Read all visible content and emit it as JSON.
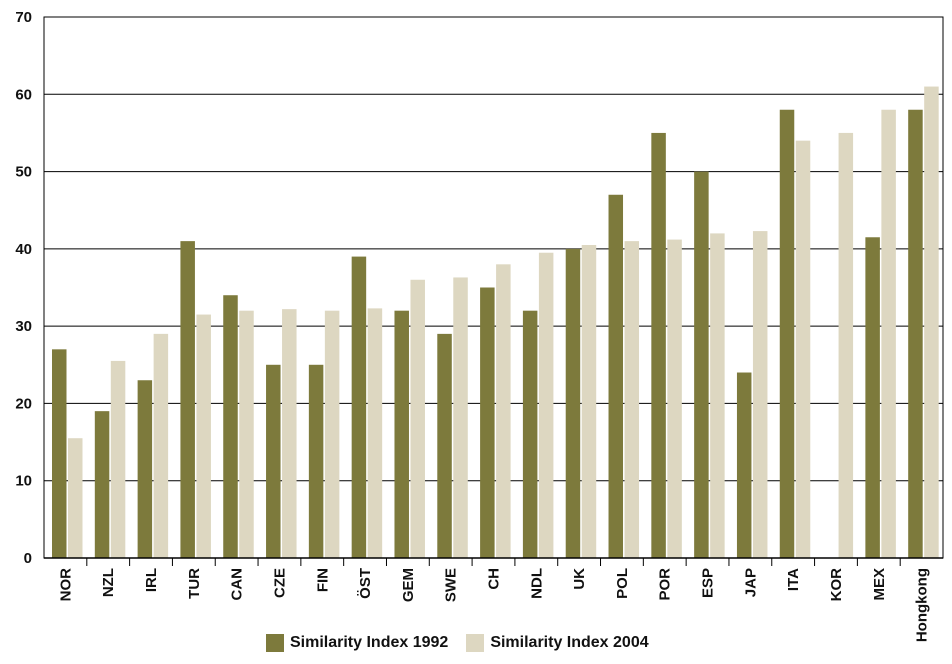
{
  "chart_data": {
    "type": "bar",
    "title": "",
    "xlabel": "",
    "ylabel": "",
    "ylim": [
      0,
      70
    ],
    "yticks": [
      0,
      10,
      20,
      30,
      40,
      50,
      60,
      70
    ],
    "grid": true,
    "legend_position": "bottom",
    "categories": [
      "NOR",
      "NZL",
      "IRL",
      "TUR",
      "CAN",
      "CZE",
      "FIN",
      "ÖST",
      "GEM",
      "SWE",
      "CH",
      "NDL",
      "UK",
      "POL",
      "POR",
      "ESP",
      "JAP",
      "ITA",
      "KOR",
      "MEX",
      "Hongkong"
    ],
    "series": [
      {
        "name": "Similarity Index 1992",
        "color": "#7d7a3c",
        "values": [
          27,
          19,
          23,
          41,
          34,
          25,
          25,
          39,
          32,
          29,
          35,
          32,
          40,
          47,
          55,
          50,
          24,
          58,
          null,
          41.5,
          58
        ]
      },
      {
        "name": "Similarity Index 2004",
        "color": "#ddd7c1",
        "values": [
          15.5,
          25.5,
          29,
          31.5,
          32,
          32.2,
          32,
          32.3,
          36,
          36.3,
          38,
          39.5,
          40.5,
          41,
          41.2,
          42,
          42.3,
          54,
          55,
          58,
          61
        ]
      }
    ]
  }
}
